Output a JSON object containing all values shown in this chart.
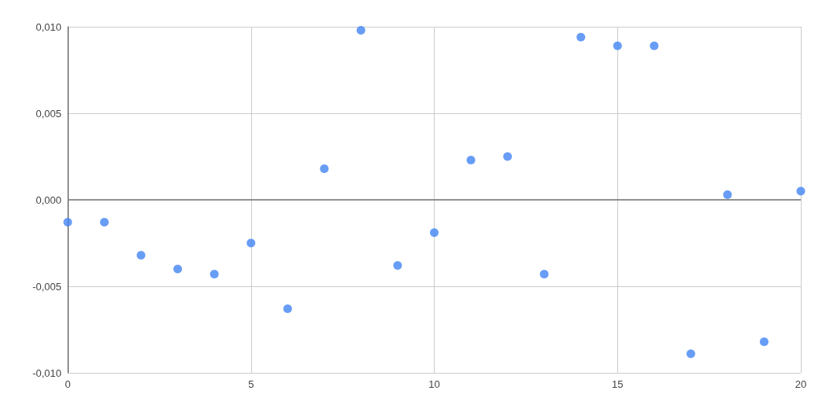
{
  "chart_data": {
    "type": "scatter",
    "x": [
      0,
      1,
      2,
      3,
      4,
      5,
      6,
      7,
      8,
      9,
      10,
      11,
      12,
      13,
      14,
      15,
      16,
      17,
      18,
      19,
      20
    ],
    "series": [
      {
        "color": "#4285f4",
        "values": [
          -0.0013,
          -0.0013,
          -0.0032,
          -0.004,
          -0.0043,
          -0.0025,
          -0.0063,
          0.0018,
          0.0098,
          -0.0038,
          -0.0019,
          0.0023,
          0.0025,
          -0.0043,
          0.0094,
          0.0089,
          0.0089,
          -0.0089,
          0.0003,
          -0.0082,
          0.0005
        ]
      }
    ],
    "xlim": [
      0,
      20
    ],
    "xticks": [
      0,
      5,
      10,
      15,
      20
    ],
    "ylim": [
      -0.01,
      0.01
    ],
    "yticks": [
      {
        "value": -0.01,
        "label": "-0,010"
      },
      {
        "value": -0.005,
        "label": "-0,005"
      },
      {
        "value": 0,
        "label": "0,000"
      },
      {
        "value": 0.005,
        "label": "0,005"
      },
      {
        "value": 0.01,
        "label": "0,010"
      }
    ],
    "ref_lines": [
      {
        "axis": "y",
        "value": 0,
        "color": "#757575"
      }
    ],
    "grid": true,
    "marker": "circle"
  }
}
